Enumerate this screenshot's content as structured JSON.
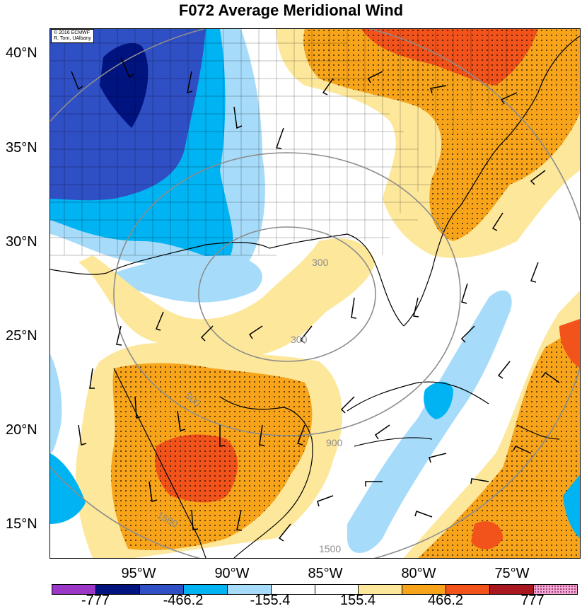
{
  "title": "F072 Average Meridional Wind",
  "credit": {
    "line1": "© 2016 ECMWF",
    "line2": "R. Torn, UAlbany"
  },
  "lat_labels": [
    "40°N",
    "35°N",
    "30°N",
    "25°N",
    "20°N",
    "15°N"
  ],
  "lon_labels": [
    "95°W",
    "90°W",
    "85°W",
    "80°W",
    "75°W"
  ],
  "contour_labels": [
    "300",
    "300",
    "900",
    "900",
    "1500",
    "1500"
  ],
  "colorbar": {
    "labels": [
      "-777",
      "-466.2",
      "-155.4",
      "155.4",
      "466.2",
      "777"
    ],
    "colors": [
      "#9b37c6",
      "#00137f",
      "#2f4fc4",
      "#00b3f2",
      "#a6dcfa",
      "#ffffff",
      "#ffffff",
      "#fde79a",
      "#f7a41b",
      "#f2531b",
      "#a9181e",
      "#f7a6d6"
    ]
  },
  "field_colors": {
    "deep_blue": "#00137f",
    "blue": "#2f4fc4",
    "cyan": "#00b3f2",
    "light_blue": "#a6dcfa",
    "yellow": "#fde79a",
    "orange": "#f7a41b",
    "red_orange": "#f2531b"
  }
}
